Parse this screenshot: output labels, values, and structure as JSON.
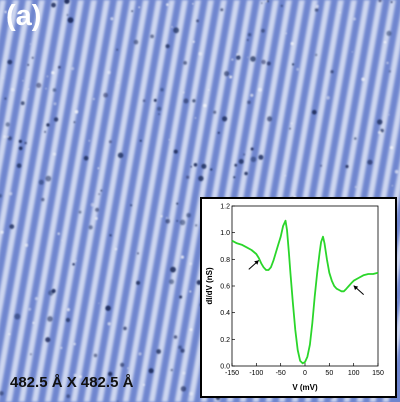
{
  "panel_label": "(a)",
  "scale_label": "482.5 Å X 482.5 Å",
  "colors": {
    "stm_base": "#6f86cf",
    "stm_bright": "#eef1fb",
    "stm_dark": "#1c2c5c",
    "curve": "#2ad62a"
  },
  "chart_data": {
    "type": "line",
    "title": "",
    "xlabel": "V (mV)",
    "ylabel": "dI/dV (nS)",
    "xlim": [
      -150,
      150
    ],
    "ylim": [
      0.0,
      1.2
    ],
    "xticks": [
      "-150",
      "-100",
      "-50",
      "0",
      "50",
      "100",
      "150"
    ],
    "yticks": [
      "0.0",
      "0.2",
      "0.4",
      "0.6",
      "0.8",
      "1.0",
      "1.2"
    ],
    "grid": false,
    "series": [
      {
        "x": [
          -150,
          -140,
          -130,
          -120,
          -110,
          -100,
          -95,
          -90,
          -85,
          -80,
          -75,
          -70,
          -65,
          -60,
          -55,
          -50,
          -45,
          -40,
          -37,
          -33,
          -30,
          -25,
          -20,
          -15,
          -10,
          -5,
          0,
          5,
          10,
          15,
          20,
          25,
          30,
          33,
          37,
          40,
          45,
          50,
          55,
          60,
          65,
          70,
          75,
          80,
          85,
          90,
          95,
          100,
          110,
          120,
          130,
          140,
          150
        ],
        "y": [
          0.94,
          0.92,
          0.91,
          0.89,
          0.87,
          0.84,
          0.81,
          0.77,
          0.74,
          0.72,
          0.72,
          0.74,
          0.79,
          0.85,
          0.91,
          0.97,
          1.05,
          1.09,
          1.02,
          0.85,
          0.7,
          0.48,
          0.27,
          0.12,
          0.04,
          0.02,
          0.03,
          0.07,
          0.16,
          0.32,
          0.52,
          0.7,
          0.85,
          0.93,
          0.97,
          0.92,
          0.8,
          0.7,
          0.64,
          0.6,
          0.58,
          0.57,
          0.56,
          0.56,
          0.58,
          0.6,
          0.62,
          0.64,
          0.66,
          0.68,
          0.69,
          0.69,
          0.7
        ]
      }
    ],
    "annotations": [
      {
        "type": "arrow",
        "x": -95,
        "y": 0.8
      },
      {
        "type": "arrow",
        "x": 100,
        "y": 0.61
      }
    ]
  }
}
